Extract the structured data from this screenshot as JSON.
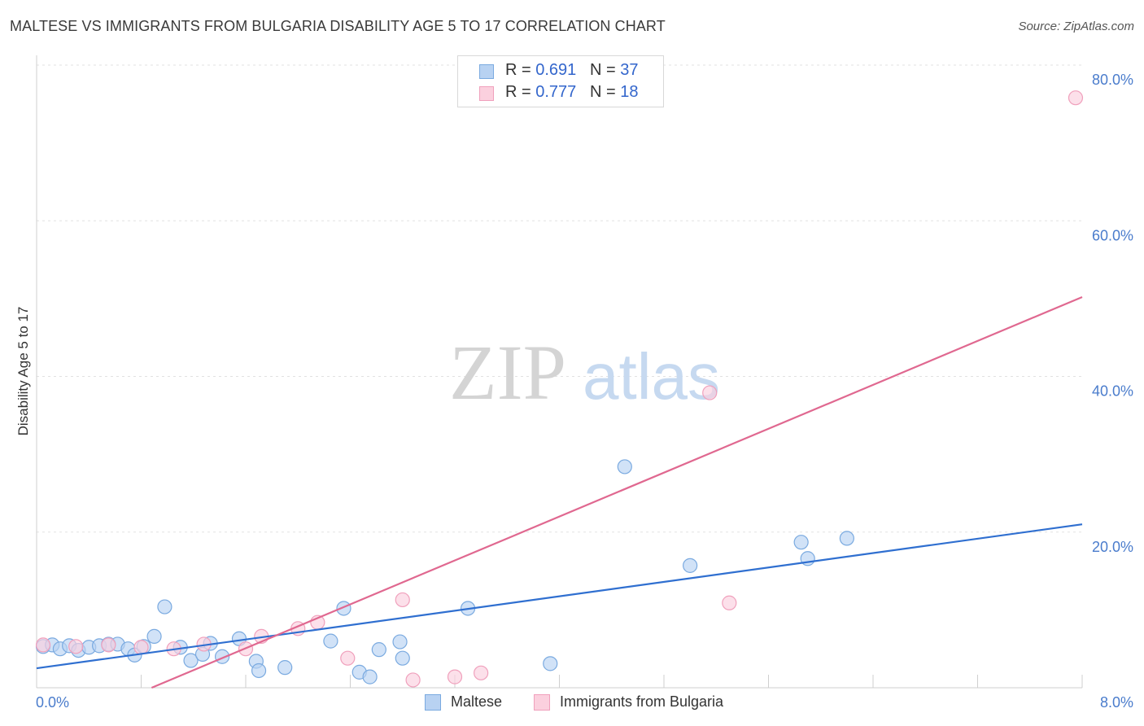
{
  "header": {
    "title": "MALTESE VS IMMIGRANTS FROM BULGARIA DISABILITY AGE 5 TO 17 CORRELATION CHART",
    "source": "Source: ZipAtlas.com"
  },
  "watermark": {
    "zip": "ZIP",
    "atlas": "atlas"
  },
  "legend": {
    "rows": [
      {
        "r_label": "R =",
        "r_value": "0.691",
        "n_label": "N =",
        "n_value": "37"
      },
      {
        "r_label": "R =",
        "r_value": "0.777",
        "n_label": "N =",
        "n_value": "18"
      }
    ]
  },
  "chart_data": {
    "type": "scatter",
    "ylabel": "Disability Age 5 to 17",
    "xlim": [
      0,
      8
    ],
    "ylim": [
      0,
      80
    ],
    "x_tick_labels": [
      "0.0%",
      "8.0%"
    ],
    "y_ticks": [
      20,
      40,
      60,
      80
    ],
    "y_tick_labels": [
      "20.0%",
      "40.0%",
      "60.0%",
      "80.0%"
    ],
    "grid": true,
    "legend_placement": "top-center",
    "series": [
      {
        "name": "Maltese",
        "color": "#7aaae0",
        "fill": "#b8d2f2",
        "trend": [
          [
            0,
            2.5
          ],
          [
            8,
            21.0
          ]
        ],
        "points": [
          [
            0.05,
            5.3
          ],
          [
            0.12,
            5.5
          ],
          [
            0.18,
            5.0
          ],
          [
            0.25,
            5.4
          ],
          [
            0.32,
            4.8
          ],
          [
            0.4,
            5.2
          ],
          [
            0.48,
            5.4
          ],
          [
            0.55,
            5.6
          ],
          [
            0.62,
            5.6
          ],
          [
            0.7,
            5.0
          ],
          [
            0.75,
            4.2
          ],
          [
            0.82,
            5.3
          ],
          [
            0.9,
            6.6
          ],
          [
            0.98,
            10.4
          ],
          [
            1.1,
            5.2
          ],
          [
            1.18,
            3.5
          ],
          [
            1.27,
            4.3
          ],
          [
            1.33,
            5.7
          ],
          [
            1.42,
            4.0
          ],
          [
            1.55,
            6.3
          ],
          [
            1.68,
            3.4
          ],
          [
            1.7,
            2.2
          ],
          [
            1.9,
            2.6
          ],
          [
            2.25,
            6.0
          ],
          [
            2.35,
            10.2
          ],
          [
            2.47,
            2.0
          ],
          [
            2.55,
            1.4
          ],
          [
            2.62,
            4.9
          ],
          [
            2.78,
            5.9
          ],
          [
            2.8,
            3.8
          ],
          [
            3.3,
            10.2
          ],
          [
            3.93,
            3.1
          ],
          [
            4.5,
            28.4
          ],
          [
            5.0,
            15.7
          ],
          [
            5.85,
            18.7
          ],
          [
            5.9,
            16.6
          ],
          [
            6.2,
            19.2
          ]
        ]
      },
      {
        "name": "Immigrants from Bulgaria",
        "color": "#f0a0bc",
        "fill": "#fbd0de",
        "trend": [
          [
            0.88,
            0
          ],
          [
            8,
            50.2
          ]
        ],
        "points": [
          [
            0.05,
            5.5
          ],
          [
            0.3,
            5.3
          ],
          [
            0.55,
            5.5
          ],
          [
            0.8,
            5.2
          ],
          [
            1.05,
            5.0
          ],
          [
            1.28,
            5.6
          ],
          [
            1.6,
            5.0
          ],
          [
            1.72,
            6.6
          ],
          [
            2.0,
            7.6
          ],
          [
            2.15,
            8.4
          ],
          [
            2.38,
            3.8
          ],
          [
            2.8,
            11.3
          ],
          [
            2.88,
            1.0
          ],
          [
            3.2,
            1.4
          ],
          [
            3.4,
            1.9
          ],
          [
            5.15,
            37.9
          ],
          [
            5.3,
            10.9
          ],
          [
            7.95,
            75.8
          ]
        ]
      }
    ]
  }
}
